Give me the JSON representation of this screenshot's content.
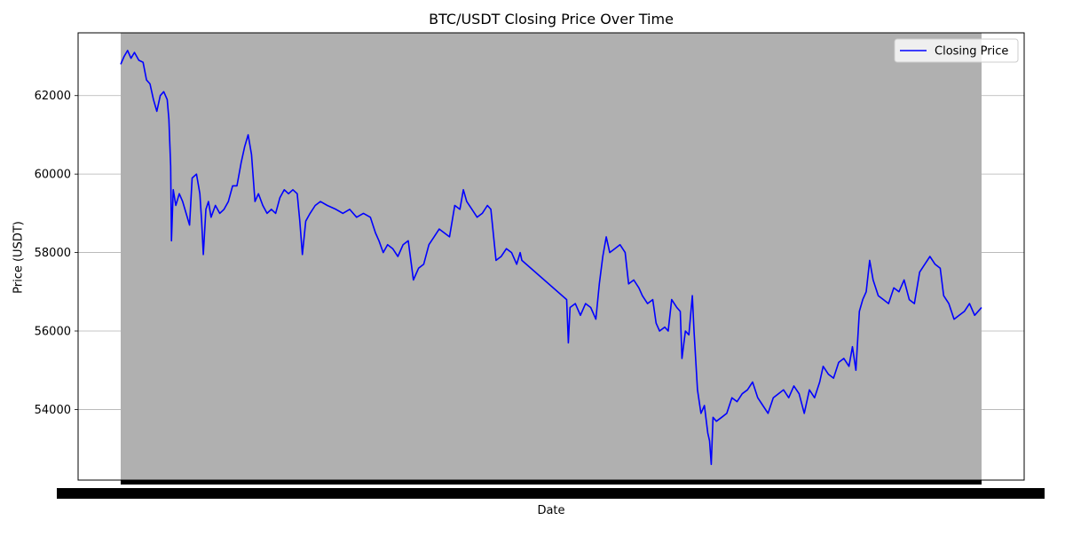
{
  "chart_data": {
    "type": "line",
    "title": "BTC/USDT Closing Price Over Time",
    "xlabel": "Date",
    "ylabel": "Price (USDT)",
    "ylim": [
      52200,
      63600
    ],
    "yticks": [
      54000,
      56000,
      58000,
      60000,
      62000
    ],
    "grid": "horizontal",
    "legend": "top-right",
    "plot_background": "#b0b0b0",
    "x_index_range": [
      0,
      1
    ],
    "series": [
      {
        "name": "Closing Price",
        "color": "#0000ff",
        "points": [
          [
            0.0,
            62800
          ],
          [
            0.004,
            63000
          ],
          [
            0.008,
            63150
          ],
          [
            0.012,
            62950
          ],
          [
            0.016,
            63100
          ],
          [
            0.021,
            62900
          ],
          [
            0.026,
            62850
          ],
          [
            0.03,
            62400
          ],
          [
            0.034,
            62300
          ],
          [
            0.038,
            61900
          ],
          [
            0.042,
            61600
          ],
          [
            0.046,
            62000
          ],
          [
            0.05,
            62100
          ],
          [
            0.054,
            61900
          ],
          [
            0.056,
            61400
          ],
          [
            0.058,
            60200
          ],
          [
            0.059,
            58300
          ],
          [
            0.061,
            59600
          ],
          [
            0.064,
            59200
          ],
          [
            0.068,
            59500
          ],
          [
            0.072,
            59300
          ],
          [
            0.076,
            59000
          ],
          [
            0.08,
            58700
          ],
          [
            0.083,
            59900
          ],
          [
            0.088,
            60000
          ],
          [
            0.092,
            59500
          ],
          [
            0.094,
            58800
          ],
          [
            0.096,
            57950
          ],
          [
            0.099,
            59100
          ],
          [
            0.102,
            59300
          ],
          [
            0.105,
            58900
          ],
          [
            0.11,
            59200
          ],
          [
            0.115,
            59000
          ],
          [
            0.12,
            59100
          ],
          [
            0.125,
            59300
          ],
          [
            0.13,
            59700
          ],
          [
            0.135,
            59700
          ],
          [
            0.14,
            60300
          ],
          [
            0.144,
            60700
          ],
          [
            0.148,
            61000
          ],
          [
            0.152,
            60500
          ],
          [
            0.156,
            59300
          ],
          [
            0.16,
            59500
          ],
          [
            0.165,
            59200
          ],
          [
            0.17,
            59000
          ],
          [
            0.175,
            59100
          ],
          [
            0.18,
            59000
          ],
          [
            0.185,
            59400
          ],
          [
            0.19,
            59600
          ],
          [
            0.195,
            59500
          ],
          [
            0.2,
            59600
          ],
          [
            0.205,
            59500
          ],
          [
            0.208,
            58800
          ],
          [
            0.211,
            57950
          ],
          [
            0.215,
            58800
          ],
          [
            0.22,
            59000
          ],
          [
            0.226,
            59200
          ],
          [
            0.232,
            59300
          ],
          [
            0.24,
            59200
          ],
          [
            0.25,
            59100
          ],
          [
            0.258,
            59000
          ],
          [
            0.266,
            59100
          ],
          [
            0.274,
            58900
          ],
          [
            0.282,
            59000
          ],
          [
            0.29,
            58900
          ],
          [
            0.296,
            58500
          ],
          [
            0.3,
            58300
          ],
          [
            0.305,
            58000
          ],
          [
            0.31,
            58200
          ],
          [
            0.316,
            58100
          ],
          [
            0.322,
            57900
          ],
          [
            0.328,
            58200
          ],
          [
            0.334,
            58300
          ],
          [
            0.34,
            57300
          ],
          [
            0.346,
            57600
          ],
          [
            0.352,
            57700
          ],
          [
            0.358,
            58200
          ],
          [
            0.364,
            58400
          ],
          [
            0.37,
            58600
          ],
          [
            0.376,
            58500
          ],
          [
            0.382,
            58400
          ],
          [
            0.388,
            59200
          ],
          [
            0.394,
            59100
          ],
          [
            0.398,
            59600
          ],
          [
            0.402,
            59300
          ],
          [
            0.408,
            59100
          ],
          [
            0.414,
            58900
          ],
          [
            0.42,
            59000
          ],
          [
            0.426,
            59200
          ],
          [
            0.43,
            59100
          ],
          [
            0.436,
            57800
          ],
          [
            0.442,
            57900
          ],
          [
            0.448,
            58100
          ],
          [
            0.454,
            58000
          ],
          [
            0.46,
            57700
          ],
          [
            0.464,
            58000
          ],
          [
            0.466,
            57800
          ],
          [
            0.518,
            56800
          ],
          [
            0.52,
            55700
          ],
          [
            0.522,
            56600
          ],
          [
            0.528,
            56700
          ],
          [
            0.534,
            56400
          ],
          [
            0.54,
            56700
          ],
          [
            0.546,
            56600
          ],
          [
            0.552,
            56300
          ],
          [
            0.556,
            57200
          ],
          [
            0.56,
            57900
          ],
          [
            0.564,
            58400
          ],
          [
            0.568,
            58000
          ],
          [
            0.574,
            58100
          ],
          [
            0.58,
            58200
          ],
          [
            0.586,
            58000
          ],
          [
            0.59,
            57200
          ],
          [
            0.596,
            57300
          ],
          [
            0.602,
            57100
          ],
          [
            0.606,
            56900
          ],
          [
            0.612,
            56700
          ],
          [
            0.618,
            56800
          ],
          [
            0.622,
            56200
          ],
          [
            0.626,
            56000
          ],
          [
            0.632,
            56100
          ],
          [
            0.636,
            56000
          ],
          [
            0.64,
            56800
          ],
          [
            0.646,
            56600
          ],
          [
            0.65,
            56500
          ],
          [
            0.652,
            55300
          ],
          [
            0.656,
            56000
          ],
          [
            0.66,
            55900
          ],
          [
            0.664,
            56900
          ],
          [
            0.666,
            56000
          ],
          [
            0.67,
            54500
          ],
          [
            0.674,
            53900
          ],
          [
            0.678,
            54100
          ],
          [
            0.682,
            53400
          ],
          [
            0.684,
            53200
          ],
          [
            0.686,
            52600
          ],
          [
            0.688,
            53800
          ],
          [
            0.692,
            53700
          ],
          [
            0.698,
            53800
          ],
          [
            0.704,
            53900
          ],
          [
            0.71,
            54300
          ],
          [
            0.716,
            54200
          ],
          [
            0.722,
            54400
          ],
          [
            0.728,
            54500
          ],
          [
            0.734,
            54700
          ],
          [
            0.74,
            54300
          ],
          [
            0.746,
            54100
          ],
          [
            0.752,
            53900
          ],
          [
            0.758,
            54300
          ],
          [
            0.764,
            54400
          ],
          [
            0.77,
            54500
          ],
          [
            0.776,
            54300
          ],
          [
            0.782,
            54600
          ],
          [
            0.788,
            54400
          ],
          [
            0.794,
            53900
          ],
          [
            0.8,
            54500
          ],
          [
            0.806,
            54300
          ],
          [
            0.812,
            54700
          ],
          [
            0.816,
            55100
          ],
          [
            0.822,
            54900
          ],
          [
            0.828,
            54800
          ],
          [
            0.834,
            55200
          ],
          [
            0.84,
            55300
          ],
          [
            0.846,
            55100
          ],
          [
            0.85,
            55600
          ],
          [
            0.854,
            55000
          ],
          [
            0.858,
            56500
          ],
          [
            0.862,
            56800
          ],
          [
            0.866,
            57000
          ],
          [
            0.87,
            57800
          ],
          [
            0.874,
            57300
          ],
          [
            0.88,
            56900
          ],
          [
            0.886,
            56800
          ],
          [
            0.892,
            56700
          ],
          [
            0.898,
            57100
          ],
          [
            0.904,
            57000
          ],
          [
            0.91,
            57300
          ],
          [
            0.916,
            56800
          ],
          [
            0.922,
            56700
          ],
          [
            0.928,
            57500
          ],
          [
            0.934,
            57700
          ],
          [
            0.94,
            57900
          ],
          [
            0.946,
            57700
          ],
          [
            0.952,
            57600
          ],
          [
            0.956,
            56900
          ],
          [
            0.962,
            56700
          ],
          [
            0.968,
            56300
          ],
          [
            0.974,
            56400
          ],
          [
            0.98,
            56500
          ],
          [
            0.986,
            56700
          ],
          [
            0.992,
            56400
          ],
          [
            1.0,
            56600
          ]
        ]
      }
    ]
  }
}
